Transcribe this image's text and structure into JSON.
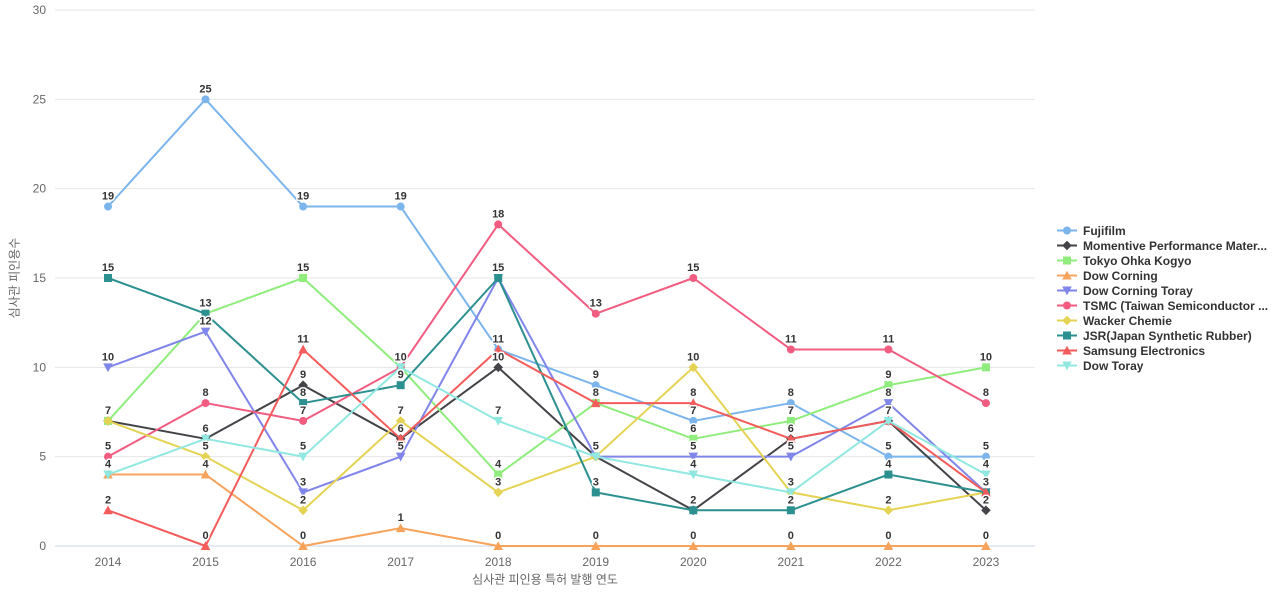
{
  "chart_data": {
    "type": "line",
    "title": "",
    "xlabel": "심사관 피인용 특허 발행 연도",
    "ylabel": "심사관 피인용수",
    "x": [
      2014,
      2015,
      2016,
      2017,
      2018,
      2019,
      2020,
      2021,
      2022,
      2023
    ],
    "ylim": [
      0,
      30
    ],
    "yticks": [
      0,
      5,
      10,
      15,
      20,
      25,
      30
    ],
    "grid": true,
    "legend_position": "right",
    "colors": {
      "gridline": "#e6e6e6",
      "axis_line": "#ccd6eb",
      "tick_label": "#666666",
      "axis_title": "#666666",
      "data_label": "#333333",
      "legend_text": "#333333"
    },
    "series": [
      {
        "name": "Fujifilm",
        "color": "#7cb5ec",
        "marker": "circle",
        "values": [
          19,
          25,
          19,
          19,
          11,
          9,
          7,
          8,
          5,
          5
        ]
      },
      {
        "name": "Momentive Performance Mater...",
        "color": "#434348",
        "marker": "diamond",
        "values": [
          7,
          6,
          9,
          6,
          10,
          5,
          2,
          6,
          7,
          2
        ]
      },
      {
        "name": "Tokyo Ohka Kogyo",
        "color": "#90ed7d",
        "marker": "square",
        "values": [
          7,
          13,
          15,
          10,
          4,
          8,
          6,
          7,
          9,
          10
        ]
      },
      {
        "name": "Dow Corning",
        "color": "#f7a35c",
        "marker": "triangle",
        "values": [
          4,
          4,
          0,
          1,
          0,
          0,
          0,
          0,
          0,
          0
        ]
      },
      {
        "name": "Dow Corning Toray",
        "color": "#8085e9",
        "marker": "triangle-down",
        "values": [
          10,
          12,
          3,
          5,
          15,
          5,
          5,
          5,
          8,
          3
        ]
      },
      {
        "name": "TSMC (Taiwan Semiconductor ...",
        "color": "#f15c80",
        "marker": "circle",
        "values": [
          5,
          8,
          7,
          10,
          18,
          13,
          15,
          11,
          11,
          8
        ]
      },
      {
        "name": "Wacker Chemie",
        "color": "#e4d354",
        "marker": "diamond",
        "values": [
          7,
          5,
          2,
          7,
          3,
          5,
          10,
          3,
          2,
          3
        ]
      },
      {
        "name": "JSR(Japan Synthetic Rubber)",
        "color": "#2b908f",
        "marker": "square",
        "values": [
          15,
          13,
          8,
          9,
          15,
          3,
          2,
          2,
          4,
          3
        ]
      },
      {
        "name": "Samsung Electronics",
        "color": "#f45b5b",
        "marker": "triangle",
        "values": [
          2,
          0,
          11,
          6,
          11,
          8,
          8,
          6,
          7,
          3
        ]
      },
      {
        "name": "Dow Toray",
        "color": "#91e8e1",
        "marker": "triangle-down",
        "values": [
          4,
          6,
          5,
          10,
          7,
          5,
          4,
          3,
          7,
          4
        ]
      }
    ]
  }
}
